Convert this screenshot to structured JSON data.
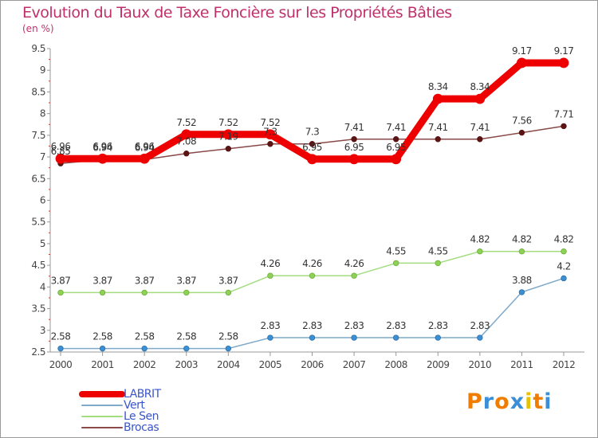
{
  "chart_data": {
    "type": "line",
    "title": "Evolution du Taux de Taxe Foncière sur les Propriétés Bâties",
    "subtitle": "(en %)",
    "x": [
      "2000",
      "2001",
      "2002",
      "2003",
      "2004",
      "2005",
      "2006",
      "2007",
      "2008",
      "2009",
      "2010",
      "2011",
      "2012"
    ],
    "y_ticks": [
      "2.5",
      "3",
      "3.5",
      "4",
      "4.5",
      "5",
      "5.5",
      "6",
      "6.5",
      "7",
      "7.5",
      "8",
      "8.5",
      "9",
      "9.5"
    ],
    "ylim": [
      2.5,
      9.5
    ],
    "grid": false,
    "legend_position": "bottom-left",
    "series": [
      {
        "name": "LABRIT",
        "color": "#ee0000",
        "values": [
          6.96,
          6.96,
          6.96,
          7.52,
          7.52,
          7.52,
          6.95,
          6.95,
          6.95,
          8.34,
          8.34,
          9.17,
          9.17
        ],
        "labels": [
          "6.96",
          "6.96",
          "6.96",
          "7.52",
          "7.52",
          "7.52",
          "6.95",
          "6.95",
          "6.95",
          "8.34",
          "8.34",
          "9.17",
          "9.17"
        ]
      },
      {
        "name": "Vert",
        "color": "#7fa9c9",
        "values": [
          2.58,
          2.58,
          2.58,
          2.58,
          2.58,
          2.83,
          2.83,
          2.83,
          2.83,
          2.83,
          2.83,
          3.88,
          4.2
        ],
        "labels": [
          "2.58",
          "2.58",
          "2.58",
          "2.58",
          "2.58",
          "2.83",
          "2.83",
          "2.83",
          "2.83",
          "2.83",
          "2.83",
          "3.88",
          "4.2"
        ]
      },
      {
        "name": "Le Sen",
        "color": "#a4dc80",
        "values": [
          3.87,
          3.87,
          3.87,
          3.87,
          3.87,
          4.26,
          4.26,
          4.26,
          4.55,
          4.55,
          4.82,
          4.82,
          4.82
        ],
        "labels": [
          "3.87",
          "3.87",
          "3.87",
          "3.87",
          "3.87",
          "4.26",
          "4.26",
          "4.26",
          "4.55",
          "4.55",
          "4.82",
          "4.82",
          "4.82"
        ]
      },
      {
        "name": "Brocas",
        "color": "#8a4848",
        "values": [
          6.85,
          6.94,
          6.94,
          7.08,
          7.19,
          7.3,
          7.3,
          7.41,
          7.41,
          7.41,
          7.41,
          7.56,
          7.71
        ],
        "labels": [
          "6.85",
          "6.94",
          "6.94",
          "7.08",
          "7.19",
          "7.3",
          "7.3",
          "7.41",
          "7.41",
          "7.41",
          "7.41",
          "7.56",
          "7.71"
        ]
      }
    ]
  },
  "brand": {
    "name": "Proxiti",
    "letters": [
      {
        "ch": "P",
        "color": "#f07c00"
      },
      {
        "ch": "r",
        "color": "#3a8fd8"
      },
      {
        "ch": "o",
        "color": "#f07c00"
      },
      {
        "ch": "x",
        "color": "#3a8fd8"
      },
      {
        "ch": "i",
        "color": "#e8c200"
      },
      {
        "ch": "t",
        "color": "#f07c00"
      },
      {
        "ch": "i",
        "color": "#3a8fd8"
      }
    ]
  }
}
